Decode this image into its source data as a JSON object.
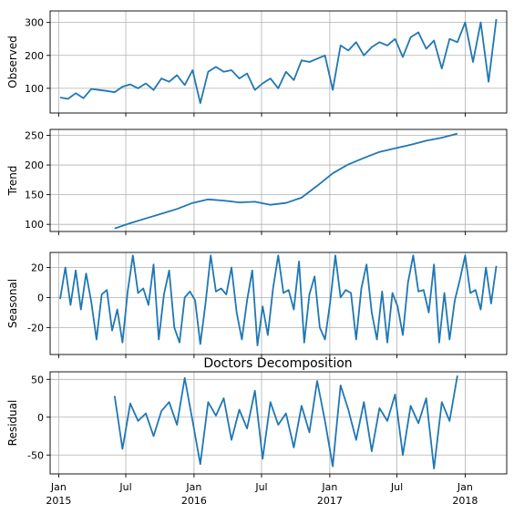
{
  "chart_data": {
    "type": "line",
    "title": "Doctors Decomposition",
    "x_ticks": [
      {
        "date": "2015-01-01",
        "label": "Jan",
        "year": "2015"
      },
      {
        "date": "2015-07-01",
        "label": "Jul",
        "year": ""
      },
      {
        "date": "2016-01-01",
        "label": "Jan",
        "year": "2016"
      },
      {
        "date": "2016-07-01",
        "label": "Jul",
        "year": ""
      },
      {
        "date": "2017-01-01",
        "label": "Jan",
        "year": "2017"
      },
      {
        "date": "2017-07-01",
        "label": "Jul",
        "year": ""
      },
      {
        "date": "2018-01-01",
        "label": "Jan",
        "year": "2018"
      }
    ],
    "xlim": [
      "2014-12-09",
      "2018-04-23"
    ],
    "grid": true,
    "color": "#1f77b4",
    "panels": [
      {
        "ylabel": "Observed",
        "ylim": [
          25,
          335
        ],
        "yticks": [
          100,
          200,
          300
        ],
        "series": {
          "x": [
            "2015-01-05",
            "2015-01-26",
            "2015-02-16",
            "2015-03-09",
            "2015-03-30",
            "2015-04-20",
            "2015-05-11",
            "2015-06-01",
            "2015-06-22",
            "2015-07-13",
            "2015-08-03",
            "2015-08-24",
            "2015-09-14",
            "2015-10-05",
            "2015-10-26",
            "2015-11-16",
            "2015-12-07",
            "2015-12-28",
            "2016-01-18",
            "2016-02-08",
            "2016-02-29",
            "2016-03-21",
            "2016-04-11",
            "2016-05-02",
            "2016-05-23",
            "2016-06-13",
            "2016-07-04",
            "2016-07-25",
            "2016-08-15",
            "2016-09-05",
            "2016-09-26",
            "2016-10-17",
            "2016-11-07",
            "2016-11-28",
            "2016-12-19",
            "2017-01-09",
            "2017-01-30",
            "2017-02-20",
            "2017-03-13",
            "2017-04-03",
            "2017-04-24",
            "2017-05-15",
            "2017-06-05",
            "2017-06-26",
            "2017-07-17",
            "2017-08-07",
            "2017-08-28",
            "2017-09-18",
            "2017-10-09",
            "2017-10-30",
            "2017-11-20",
            "2017-12-11",
            "2018-01-01",
            "2018-01-22",
            "2018-02-12",
            "2018-03-05",
            "2018-03-26"
          ],
          "y": [
            72,
            68,
            85,
            70,
            98,
            95,
            92,
            88,
            105,
            112,
            100,
            115,
            95,
            130,
            120,
            140,
            110,
            155,
            55,
            150,
            165,
            150,
            155,
            130,
            145,
            95,
            115,
            130,
            100,
            150,
            125,
            185,
            180,
            190,
            200,
            95,
            230,
            215,
            240,
            200,
            225,
            240,
            230,
            250,
            195,
            255,
            270,
            220,
            245,
            160,
            250,
            240,
            300,
            180,
            300,
            120,
            310
          ]
        }
      },
      {
        "ylabel": "Trend",
        "ylim": [
          88,
          260
        ],
        "yticks": [
          100,
          150,
          200,
          250
        ],
        "series": {
          "x": [
            "2015-06-01",
            "2015-07-13",
            "2015-08-24",
            "2015-10-05",
            "2015-11-16",
            "2015-12-28",
            "2016-02-08",
            "2016-03-21",
            "2016-05-02",
            "2016-06-13",
            "2016-07-25",
            "2016-09-05",
            "2016-10-17",
            "2016-11-28",
            "2017-01-09",
            "2017-02-20",
            "2017-04-03",
            "2017-05-15",
            "2017-06-26",
            "2017-08-07",
            "2017-09-18",
            "2017-10-30",
            "2017-12-11"
          ],
          "y": [
            93,
            102,
            110,
            118,
            126,
            136,
            142,
            140,
            137,
            138,
            133,
            136,
            145,
            165,
            186,
            201,
            212,
            222,
            228,
            234,
            241,
            246,
            253
          ]
        }
      },
      {
        "ylabel": "Seasonal",
        "ylim": [
          -38,
          30
        ],
        "yticks": [
          -20,
          0,
          20
        ],
        "series": {
          "x": [
            "2015-01-05",
            "2015-01-19",
            "2015-02-02",
            "2015-02-16",
            "2015-03-02",
            "2015-03-16",
            "2015-03-30",
            "2015-04-13",
            "2015-04-27",
            "2015-05-11",
            "2015-05-25",
            "2015-06-08",
            "2015-06-22",
            "2015-07-06",
            "2015-07-20",
            "2015-08-03",
            "2015-08-17",
            "2015-08-31",
            "2015-09-14",
            "2015-09-28",
            "2015-10-12",
            "2015-10-26",
            "2015-11-09",
            "2015-11-23",
            "2015-12-07",
            "2015-12-21",
            "2016-01-04",
            "2016-01-18",
            "2016-02-01",
            "2016-02-15",
            "2016-02-29",
            "2016-03-14",
            "2016-03-28",
            "2016-04-11",
            "2016-04-25",
            "2016-05-09",
            "2016-05-23",
            "2016-06-06",
            "2016-06-20",
            "2016-07-04",
            "2016-07-18",
            "2016-08-01",
            "2016-08-15",
            "2016-08-29",
            "2016-09-12",
            "2016-09-26",
            "2016-10-10",
            "2016-10-24",
            "2016-11-07",
            "2016-11-21",
            "2016-12-05",
            "2016-12-19",
            "2017-01-02",
            "2017-01-16",
            "2017-01-30",
            "2017-02-13",
            "2017-02-27",
            "2017-03-13",
            "2017-03-27",
            "2017-04-10",
            "2017-04-24",
            "2017-05-08",
            "2017-05-22",
            "2017-06-05",
            "2017-06-19",
            "2017-07-03",
            "2017-07-17",
            "2017-07-31",
            "2017-08-14",
            "2017-08-28",
            "2017-09-11",
            "2017-09-25",
            "2017-10-09",
            "2017-10-23",
            "2017-11-06",
            "2017-11-20",
            "2017-12-04",
            "2017-12-18",
            "2018-01-01",
            "2018-01-15",
            "2018-01-29",
            "2018-02-12",
            "2018-02-26",
            "2018-03-12",
            "2018-03-26"
          ],
          "y": [
            -1,
            20,
            -5,
            18,
            -8,
            16,
            -3,
            -28,
            2,
            5,
            -22,
            -8,
            -30,
            4,
            28,
            3,
            6,
            -5,
            22,
            -28,
            2,
            18,
            -20,
            -30,
            0,
            4,
            -2,
            -31,
            -4,
            28,
            4,
            6,
            2,
            20,
            -10,
            -28,
            -2,
            18,
            -32,
            -6,
            -25,
            6,
            28,
            3,
            5,
            -8,
            24,
            -30,
            2,
            14,
            -20,
            -28,
            -3,
            28,
            0,
            5,
            3,
            -28,
            6,
            22,
            -10,
            -28,
            4,
            -30,
            3,
            -6,
            -25,
            10,
            28,
            4,
            5,
            -10,
            22,
            -30,
            3,
            -28,
            -2,
            12,
            28,
            3,
            5,
            -8,
            20,
            -4,
            21
          ]
        }
      },
      {
        "ylabel": "Residual",
        "ylim": [
          -75,
          60
        ],
        "yticks": [
          -50,
          0,
          50
        ],
        "series": {
          "x": [
            "2015-06-01",
            "2015-06-22",
            "2015-07-13",
            "2015-08-03",
            "2015-08-24",
            "2015-09-14",
            "2015-10-05",
            "2015-10-26",
            "2015-11-16",
            "2015-12-07",
            "2015-12-28",
            "2016-01-18",
            "2016-02-08",
            "2016-02-29",
            "2016-03-21",
            "2016-04-11",
            "2016-05-02",
            "2016-05-23",
            "2016-06-13",
            "2016-07-04",
            "2016-07-25",
            "2016-08-15",
            "2016-09-05",
            "2016-09-26",
            "2016-10-17",
            "2016-11-07",
            "2016-11-28",
            "2016-12-19",
            "2017-01-09",
            "2017-01-30",
            "2017-02-20",
            "2017-03-13",
            "2017-04-03",
            "2017-04-24",
            "2017-05-15",
            "2017-06-05",
            "2017-06-26",
            "2017-07-17",
            "2017-08-07",
            "2017-08-28",
            "2017-09-18",
            "2017-10-09",
            "2017-10-30",
            "2017-11-20",
            "2017-12-11"
          ],
          "y": [
            28,
            -42,
            18,
            -5,
            5,
            -25,
            8,
            20,
            -10,
            52,
            -5,
            -62,
            20,
            2,
            25,
            -30,
            10,
            -15,
            35,
            -55,
            20,
            -10,
            5,
            -40,
            15,
            -20,
            48,
            -5,
            -65,
            42,
            10,
            -30,
            20,
            -45,
            12,
            -5,
            30,
            -50,
            15,
            -8,
            25,
            -68,
            20,
            -5,
            55
          ]
        }
      }
    ]
  }
}
